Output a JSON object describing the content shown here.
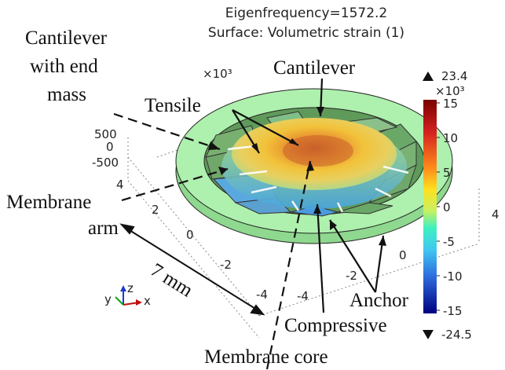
{
  "header": {
    "title_line1": "Eigenfrequency=1572.2",
    "title_line2": "Surface: Volumetric strain (1)"
  },
  "annotations": {
    "cantilever_end_mass_1": "Cantilever",
    "cantilever_end_mass_2": "with end",
    "cantilever_end_mass_3": "mass",
    "cantilever": "Cantilever",
    "tensile": "Tensile",
    "membrane_arm_1": "Membrane",
    "membrane_arm_2": "arm",
    "dimension": "7 mm",
    "anchor": "Anchor",
    "compressive": "Compressive",
    "membrane_core": "Membrane core"
  },
  "axes": {
    "multiplier": "×10³",
    "z_ticks": [
      "500",
      "0",
      "-500"
    ],
    "left_ticks": [
      "4",
      "2",
      "0",
      "-2",
      "-4"
    ],
    "right_ticks": [
      "4",
      "0",
      "-2",
      "-4"
    ],
    "right_edge_tick": "4",
    "triad": {
      "z": "z",
      "y": "y",
      "x": "x"
    }
  },
  "colorbar": {
    "max_label": "23.4",
    "min_label": "-24.5",
    "multiplier": "×10³",
    "ticks": [
      "15",
      "10",
      "5",
      "0",
      "-5",
      "-10",
      "-15"
    ],
    "colors": {
      "top": "#8b0000",
      "upper": "#e03020",
      "mid_high": "#ffd000",
      "mid": "#40ffc0",
      "mid_low": "#40a0ff",
      "bottom": "#000090"
    },
    "up_arrow": "up-triangle",
    "down_arrow": "down-triangle"
  },
  "colors": {
    "anchor_ring": "#a8f0a8",
    "membrane_arm": "#6fa86a",
    "tensile": "#f2b030",
    "compressive": "#5ab0e8"
  }
}
